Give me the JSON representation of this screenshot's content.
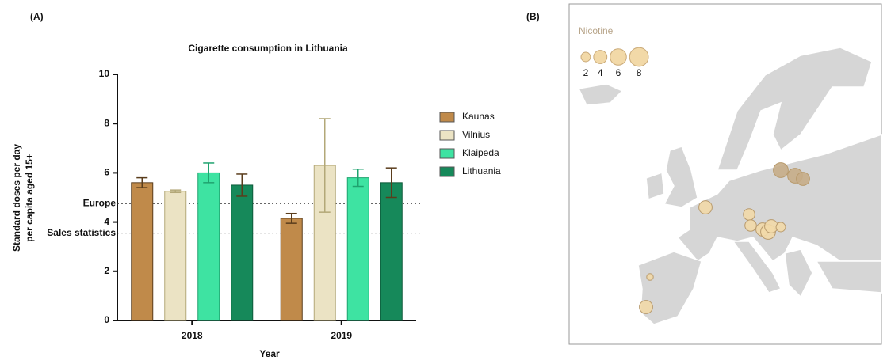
{
  "panel_labels": [
    "(A)",
    "(B)"
  ],
  "chart_data": [
    {
      "type": "bar",
      "title": "Cigarette consumption in Lithuania",
      "ylabel": [
        "Standard doses per day",
        "per capita aged 15+"
      ],
      "xlabel": "Year",
      "categories": [
        "2018",
        "2019"
      ],
      "series": [
        {
          "name": "Kaunas",
          "color": "#c08a4a",
          "values": [
            5.6,
            4.15
          ],
          "errors": [
            0.2,
            0.2
          ]
        },
        {
          "name": "Vilnius",
          "color": "#ebe3c4",
          "values": [
            5.25,
            6.3
          ],
          "errors": [
            0.05,
            1.9
          ]
        },
        {
          "name": "Klaipeda",
          "color": "#3ee3a2",
          "values": [
            6.0,
            5.8
          ],
          "errors": [
            0.4,
            0.35
          ]
        },
        {
          "name": "Lithuania",
          "color": "#16895a",
          "values": [
            5.5,
            5.6
          ],
          "errors": [
            0.45,
            0.6
          ]
        }
      ],
      "reference_lines": [
        {
          "label": "Europe",
          "value": 4.75
        },
        {
          "label": "Sales statistics",
          "value": 3.55
        }
      ],
      "ylim": [
        0,
        10
      ],
      "yticks": [
        0,
        2,
        4,
        6,
        8,
        10
      ]
    },
    {
      "type": "bubble-map",
      "title": "Nicotine",
      "color": "#f2d9a8",
      "legend_sizes": [
        2,
        4,
        6,
        8
      ],
      "values": [
        5,
        5,
        4,
        4,
        3,
        3,
        4,
        5,
        4,
        2,
        1,
        4
      ]
    }
  ]
}
